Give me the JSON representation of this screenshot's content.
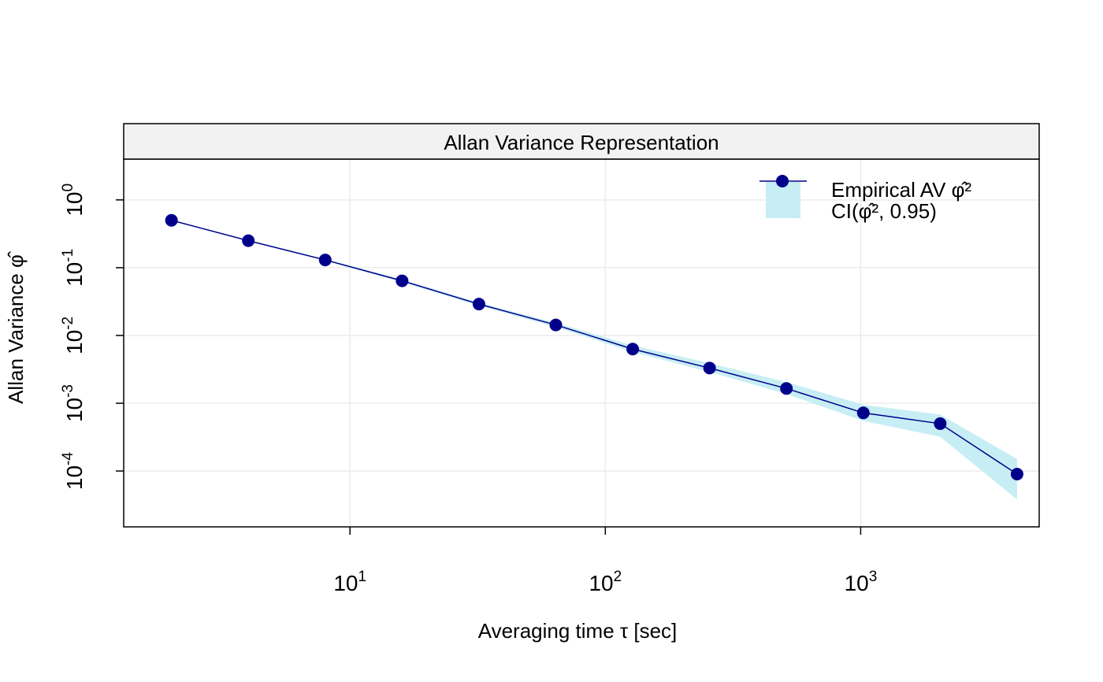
{
  "chart_data": {
    "type": "line",
    "title": "Allan Variance Representation",
    "xlabel": "Averaging time τ [sec]",
    "ylabel": "Allan Variance φ̂",
    "x_scale": "log",
    "y_scale": "log",
    "x_range": [
      1.3,
      5000
    ],
    "y_range": [
      1.5e-05,
      4
    ],
    "x_ticks": [
      {
        "value": 10,
        "base": "10",
        "exp": "1"
      },
      {
        "value": 100,
        "base": "10",
        "exp": "2"
      },
      {
        "value": 1000,
        "base": "10",
        "exp": "3"
      }
    ],
    "y_ticks": [
      {
        "value": 1,
        "base": "10",
        "exp": "0"
      },
      {
        "value": 0.1,
        "base": "10",
        "exp": "-1"
      },
      {
        "value": 0.01,
        "base": "10",
        "exp": "-2"
      },
      {
        "value": 0.001,
        "base": "10",
        "exp": "-3"
      },
      {
        "value": 0.0001,
        "base": "10",
        "exp": "-4"
      }
    ],
    "grid": true,
    "legend_position": "top-right",
    "series": [
      {
        "name": "Empirical AV φ̂²",
        "color": "#00008B",
        "x": [
          2,
          4,
          8,
          16,
          32,
          64,
          128,
          256,
          512,
          1024,
          2048,
          4096
        ],
        "y": [
          0.5,
          0.25,
          0.13,
          0.064,
          0.029,
          0.0143,
          0.0063,
          0.0033,
          0.00165,
          0.00072,
          0.0005,
          9e-05
        ]
      }
    ],
    "confidence_band": {
      "name": "CI(φ̂², 0.95)",
      "color": "#C6EEF4",
      "lower": [
        0.49,
        0.245,
        0.126,
        0.061,
        0.0275,
        0.0133,
        0.0057,
        0.0029,
        0.00137,
        0.00055,
        0.00032,
        3.8e-05
      ],
      "upper": [
        0.51,
        0.255,
        0.134,
        0.067,
        0.0305,
        0.0154,
        0.0071,
        0.0039,
        0.00205,
        0.00095,
        0.00068,
        0.00015
      ]
    }
  }
}
